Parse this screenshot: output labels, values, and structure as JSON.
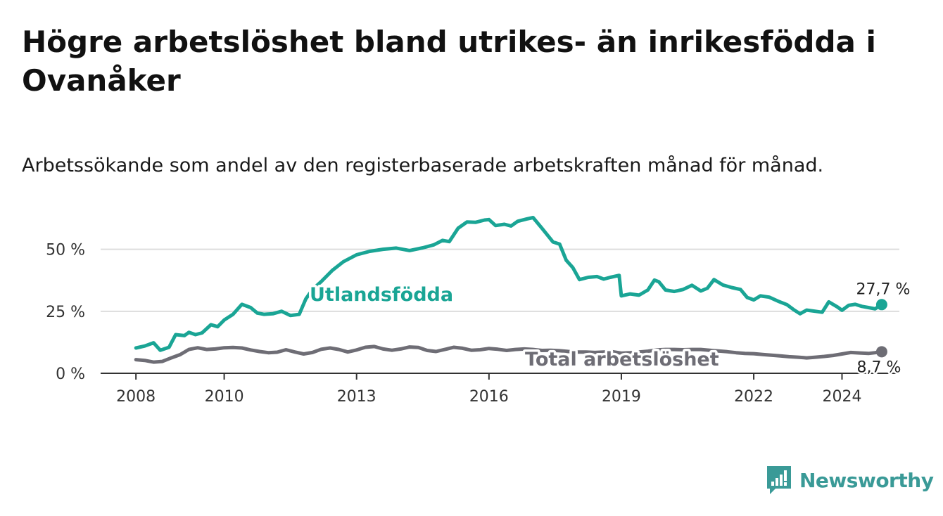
{
  "title": "Högre arbetslöshet bland utrikes- än inrikesfödda i Ovanåker",
  "subtitle": "Arbetssökande som andel av den registerbaserade arbetskraften månad för månad.",
  "brand": {
    "name": "Newsworthy",
    "icon": "newsworthy-logo-icon"
  },
  "colors": {
    "foreign": "#1aa595",
    "total": "#6e6d75",
    "axis": "#333333",
    "grid": "#dddddd",
    "brand": "#3a9a97"
  },
  "chart_data": {
    "type": "line",
    "title": "Högre arbetslöshet bland utrikes- än inrikesfödda i Ovanåker",
    "subtitle": "Arbetssökande som andel av den registerbaserade arbetskraften månad för månad.",
    "xlabel": "",
    "ylabel": "",
    "x_ticks": [
      {
        "label": "2008",
        "value": 2008
      },
      {
        "label": "2010",
        "value": 2010
      },
      {
        "label": "2013",
        "value": 2013
      },
      {
        "label": "2016",
        "value": 2016
      },
      {
        "label": "2019",
        "value": 2019
      },
      {
        "label": "2022",
        "value": 2022
      },
      {
        "label": "2024",
        "value": 2024
      }
    ],
    "y_ticks": [
      {
        "label": "0 %",
        "value": 0
      },
      {
        "label": "25 %",
        "value": 25
      },
      {
        "label": "50 %",
        "value": 50
      }
    ],
    "xlim": [
      2007.2,
      2025.3
    ],
    "ylim": [
      0,
      55
    ],
    "grid": true,
    "legend": "inline labels",
    "series": [
      {
        "name": "Utlandsfödda",
        "end_label": "27,7 %",
        "points": [
          [
            2008.0,
            10.2
          ],
          [
            2008.2,
            11.0
          ],
          [
            2008.4,
            12.3
          ],
          [
            2008.55,
            9.3
          ],
          [
            2008.75,
            10.5
          ],
          [
            2008.9,
            15.6
          ],
          [
            2009.1,
            15.2
          ],
          [
            2009.2,
            16.5
          ],
          [
            2009.35,
            15.6
          ],
          [
            2009.5,
            16.3
          ],
          [
            2009.7,
            19.6
          ],
          [
            2009.85,
            18.8
          ],
          [
            2010.0,
            21.5
          ],
          [
            2010.2,
            23.8
          ],
          [
            2010.4,
            27.8
          ],
          [
            2010.6,
            26.5
          ],
          [
            2010.75,
            24.3
          ],
          [
            2010.9,
            23.8
          ],
          [
            2011.1,
            24.0
          ],
          [
            2011.3,
            25.0
          ],
          [
            2011.5,
            23.3
          ],
          [
            2011.7,
            23.8
          ],
          [
            2011.85,
            30.0
          ],
          [
            2012.0,
            33.8
          ],
          [
            2012.2,
            37.0
          ],
          [
            2012.45,
            41.5
          ],
          [
            2012.7,
            45.0
          ],
          [
            2013.0,
            47.8
          ],
          [
            2013.3,
            49.2
          ],
          [
            2013.6,
            50.0
          ],
          [
            2013.9,
            50.5
          ],
          [
            2014.2,
            49.5
          ],
          [
            2014.5,
            50.6
          ],
          [
            2014.75,
            51.8
          ],
          [
            2014.95,
            53.6
          ],
          [
            2015.1,
            53.1
          ],
          [
            2015.3,
            58.5
          ],
          [
            2015.5,
            61.0
          ],
          [
            2015.7,
            60.9
          ],
          [
            2015.9,
            61.8
          ],
          [
            2016.0,
            62.0
          ],
          [
            2016.15,
            59.6
          ],
          [
            2016.35,
            60.1
          ],
          [
            2016.5,
            59.4
          ],
          [
            2016.65,
            61.3
          ],
          [
            2016.85,
            62.2
          ],
          [
            2017.0,
            62.8
          ],
          [
            2017.2,
            58.5
          ],
          [
            2017.45,
            53.0
          ],
          [
            2017.6,
            52.1
          ],
          [
            2017.75,
            45.6
          ],
          [
            2017.9,
            42.6
          ],
          [
            2018.05,
            37.8
          ],
          [
            2018.25,
            38.7
          ],
          [
            2018.45,
            39.0
          ],
          [
            2018.6,
            38.0
          ],
          [
            2018.75,
            38.7
          ],
          [
            2018.95,
            39.5
          ],
          [
            2019.0,
            31.2
          ],
          [
            2019.2,
            32.0
          ],
          [
            2019.4,
            31.5
          ],
          [
            2019.6,
            33.6
          ],
          [
            2019.75,
            37.6
          ],
          [
            2019.85,
            36.9
          ],
          [
            2020.0,
            33.6
          ],
          [
            2020.2,
            33.0
          ],
          [
            2020.4,
            33.8
          ],
          [
            2020.6,
            35.5
          ],
          [
            2020.8,
            33.2
          ],
          [
            2020.95,
            34.3
          ],
          [
            2021.1,
            37.8
          ],
          [
            2021.3,
            35.6
          ],
          [
            2021.5,
            34.6
          ],
          [
            2021.7,
            33.8
          ],
          [
            2021.85,
            30.6
          ],
          [
            2022.0,
            29.6
          ],
          [
            2022.15,
            31.2
          ],
          [
            2022.35,
            30.7
          ],
          [
            2022.55,
            29.1
          ],
          [
            2022.75,
            27.7
          ],
          [
            2022.9,
            25.7
          ],
          [
            2023.05,
            24.0
          ],
          [
            2023.2,
            25.5
          ],
          [
            2023.4,
            25.0
          ],
          [
            2023.55,
            24.6
          ],
          [
            2023.7,
            28.8
          ],
          [
            2023.9,
            26.7
          ],
          [
            2024.0,
            25.4
          ],
          [
            2024.15,
            27.4
          ],
          [
            2024.3,
            27.8
          ],
          [
            2024.45,
            27.0
          ],
          [
            2024.6,
            26.5
          ],
          [
            2024.75,
            26.0
          ],
          [
            2024.9,
            27.7
          ]
        ]
      },
      {
        "name": "Total arbetslöshet",
        "end_label": "8,7 %",
        "points": [
          [
            2008.0,
            5.5
          ],
          [
            2008.2,
            5.2
          ],
          [
            2008.4,
            4.5
          ],
          [
            2008.6,
            4.8
          ],
          [
            2008.8,
            6.2
          ],
          [
            2009.0,
            7.5
          ],
          [
            2009.2,
            9.6
          ],
          [
            2009.4,
            10.3
          ],
          [
            2009.6,
            9.6
          ],
          [
            2009.8,
            9.8
          ],
          [
            2010.0,
            10.3
          ],
          [
            2010.2,
            10.4
          ],
          [
            2010.4,
            10.2
          ],
          [
            2010.6,
            9.4
          ],
          [
            2010.8,
            8.8
          ],
          [
            2011.0,
            8.3
          ],
          [
            2011.2,
            8.5
          ],
          [
            2011.4,
            9.5
          ],
          [
            2011.6,
            8.6
          ],
          [
            2011.8,
            7.8
          ],
          [
            2012.0,
            8.4
          ],
          [
            2012.2,
            9.7
          ],
          [
            2012.4,
            10.2
          ],
          [
            2012.6,
            9.6
          ],
          [
            2012.8,
            8.6
          ],
          [
            2013.0,
            9.4
          ],
          [
            2013.2,
            10.5
          ],
          [
            2013.4,
            10.8
          ],
          [
            2013.6,
            9.8
          ],
          [
            2013.8,
            9.3
          ],
          [
            2014.0,
            9.8
          ],
          [
            2014.2,
            10.6
          ],
          [
            2014.4,
            10.4
          ],
          [
            2014.6,
            9.2
          ],
          [
            2014.8,
            8.8
          ],
          [
            2015.0,
            9.6
          ],
          [
            2015.2,
            10.5
          ],
          [
            2015.4,
            10.1
          ],
          [
            2015.6,
            9.3
          ],
          [
            2015.8,
            9.5
          ],
          [
            2016.0,
            10.0
          ],
          [
            2016.2,
            9.7
          ],
          [
            2016.4,
            9.2
          ],
          [
            2016.6,
            9.6
          ],
          [
            2016.8,
            9.8
          ],
          [
            2017.0,
            9.6
          ],
          [
            2017.2,
            9.2
          ],
          [
            2017.4,
            9.3
          ],
          [
            2017.6,
            9.1
          ],
          [
            2017.8,
            8.8
          ],
          [
            2018.0,
            8.6
          ],
          [
            2018.2,
            8.6
          ],
          [
            2018.4,
            8.4
          ],
          [
            2018.6,
            8.6
          ],
          [
            2018.8,
            8.7
          ],
          [
            2019.0,
            8.1
          ],
          [
            2019.2,
            8.3
          ],
          [
            2019.4,
            8.6
          ],
          [
            2019.6,
            8.9
          ],
          [
            2019.8,
            9.4
          ],
          [
            2020.0,
            9.6
          ],
          [
            2020.2,
            9.6
          ],
          [
            2020.4,
            9.5
          ],
          [
            2020.6,
            9.6
          ],
          [
            2020.8,
            9.6
          ],
          [
            2021.0,
            9.3
          ],
          [
            2021.2,
            9.0
          ],
          [
            2021.4,
            8.7
          ],
          [
            2021.6,
            8.3
          ],
          [
            2021.8,
            8.0
          ],
          [
            2022.0,
            7.9
          ],
          [
            2022.2,
            7.6
          ],
          [
            2022.4,
            7.3
          ],
          [
            2022.6,
            7.0
          ],
          [
            2022.8,
            6.7
          ],
          [
            2023.0,
            6.5
          ],
          [
            2023.2,
            6.2
          ],
          [
            2023.4,
            6.5
          ],
          [
            2023.6,
            6.8
          ],
          [
            2023.8,
            7.2
          ],
          [
            2024.0,
            7.8
          ],
          [
            2024.2,
            8.4
          ],
          [
            2024.4,
            8.2
          ],
          [
            2024.6,
            8.0
          ],
          [
            2024.75,
            8.3
          ],
          [
            2024.9,
            8.7
          ]
        ]
      }
    ]
  }
}
